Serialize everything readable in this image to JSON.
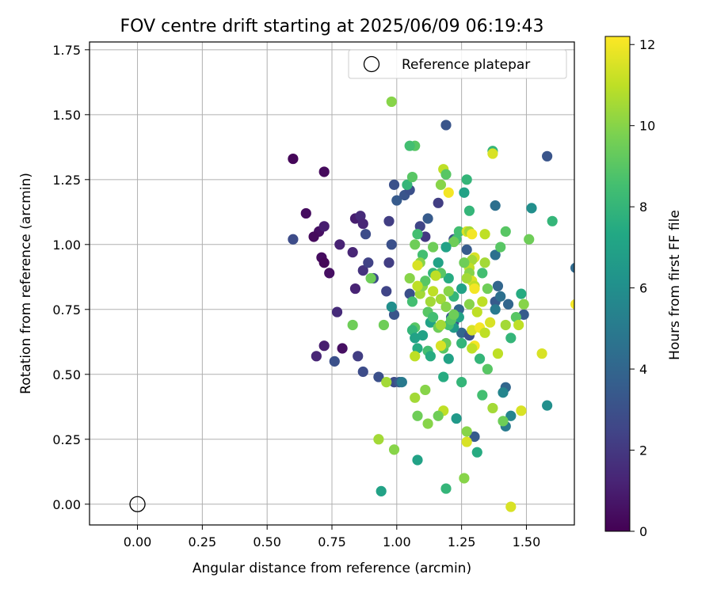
{
  "chart_data": {
    "type": "scatter",
    "title": "FOV centre drift starting at 2025/06/09 06:19:43",
    "xlabel": "Angular distance from reference (arcmin)",
    "ylabel": "Rotation from reference (arcmin)",
    "xlim": [
      -0.185,
      1.685
    ],
    "ylim": [
      -0.08,
      1.78
    ],
    "x_ticks": [
      0.0,
      0.25,
      0.5,
      0.75,
      1.0,
      1.25,
      1.5
    ],
    "x_tick_labels": [
      "0.00",
      "0.25",
      "0.50",
      "0.75",
      "1.00",
      "1.25",
      "1.50"
    ],
    "y_ticks": [
      0.0,
      0.25,
      0.5,
      0.75,
      1.0,
      1.25,
      1.5,
      1.75
    ],
    "y_tick_labels": [
      "0.00",
      "0.25",
      "0.50",
      "0.75",
      "1.00",
      "1.25",
      "1.50",
      "1.75"
    ],
    "grid": true,
    "legend": {
      "position": "top-right",
      "entries": [
        "Reference platepar"
      ]
    },
    "reference_point": {
      "x": 0.0,
      "y": 0.0,
      "label": "Reference platepar"
    },
    "colorbar": {
      "label": "Hours from first FF file",
      "range": [
        0,
        12.2
      ],
      "ticks": [
        0,
        2,
        4,
        6,
        8,
        10,
        12
      ],
      "tick_labels": [
        "0",
        "2",
        "4",
        "6",
        "8",
        "10",
        "12"
      ],
      "colormap": "viridis"
    },
    "points": [
      [
        0.6,
        1.33,
        0.2
      ],
      [
        0.72,
        1.28,
        0.3
      ],
      [
        0.65,
        1.12,
        0.4
      ],
      [
        0.7,
        1.05,
        0.5
      ],
      [
        0.68,
        1.03,
        0.3
      ],
      [
        0.71,
        0.95,
        0.4
      ],
      [
        0.72,
        0.93,
        0.2
      ],
      [
        0.74,
        0.89,
        0.5
      ],
      [
        0.78,
        1.0,
        1.2
      ],
      [
        0.84,
        1.1,
        1.0
      ],
      [
        0.86,
        1.11,
        1.5
      ],
      [
        0.87,
        1.08,
        1.3
      ],
      [
        0.6,
        1.02,
        2.8
      ],
      [
        0.72,
        1.07,
        1.0
      ],
      [
        0.83,
        0.97,
        1.3
      ],
      [
        0.87,
        0.9,
        1.8
      ],
      [
        0.84,
        0.83,
        1.2
      ],
      [
        0.77,
        0.74,
        1.5
      ],
      [
        0.72,
        0.61,
        1.0
      ],
      [
        0.69,
        0.57,
        1.3
      ],
      [
        0.79,
        0.6,
        0.5
      ],
      [
        0.76,
        0.55,
        3.0
      ],
      [
        0.85,
        0.57,
        2.2
      ],
      [
        0.87,
        0.51,
        2.8
      ],
      [
        0.89,
        0.93,
        2.4
      ],
      [
        0.91,
        0.87,
        2.8
      ],
      [
        0.96,
        0.82,
        2.5
      ],
      [
        0.97,
        0.93,
        2.2
      ],
      [
        0.97,
        1.09,
        2.2
      ],
      [
        0.88,
        1.04,
        2.8
      ],
      [
        0.98,
        1.0,
        3.0
      ],
      [
        0.99,
        0.73,
        3.2
      ],
      [
        0.93,
        0.49,
        3.0
      ],
      [
        0.99,
        0.47,
        2.8
      ],
      [
        1.01,
        0.47,
        3.5
      ],
      [
        1.0,
        1.17,
        3.5
      ],
      [
        1.03,
        1.19,
        3.2
      ],
      [
        0.99,
        1.23,
        3.0
      ],
      [
        1.05,
        1.21,
        3.0
      ],
      [
        1.09,
        1.07,
        2.5
      ],
      [
        1.11,
        1.03,
        2.0
      ],
      [
        1.12,
        1.1,
        3.5
      ],
      [
        1.16,
        1.16,
        2.2
      ],
      [
        1.19,
        1.46,
        3.2
      ],
      [
        1.58,
        1.34,
        3.2
      ],
      [
        1.22,
        1.02,
        3.0
      ],
      [
        1.27,
        0.98,
        3.5
      ],
      [
        1.24,
        0.75,
        4.0
      ],
      [
        1.21,
        0.72,
        3.5
      ],
      [
        1.22,
        0.7,
        3.0
      ],
      [
        1.25,
        0.66,
        4.0
      ],
      [
        1.28,
        0.65,
        3.0
      ],
      [
        1.3,
        0.26,
        3.5
      ],
      [
        1.05,
        0.81,
        3.0
      ],
      [
        1.38,
        0.78,
        3.5
      ],
      [
        1.38,
        0.96,
        4.5
      ],
      [
        1.38,
        1.15,
        4.5
      ],
      [
        1.39,
        0.84,
        4.0
      ],
      [
        1.43,
        0.77,
        4.0
      ],
      [
        1.49,
        0.73,
        3.5
      ],
      [
        1.42,
        0.45,
        4.0
      ],
      [
        1.42,
        0.3,
        5.0
      ],
      [
        1.44,
        0.34,
        5.5
      ],
      [
        1.69,
        0.91,
        4.2
      ],
      [
        1.38,
        0.75,
        5.0
      ],
      [
        1.37,
        1.36,
        8.0
      ],
      [
        1.52,
        1.14,
        6.0
      ],
      [
        1.6,
        1.09,
        8.0
      ],
      [
        1.48,
        0.81,
        7.5
      ],
      [
        1.58,
        0.38,
        6.0
      ],
      [
        1.41,
        0.43,
        5.5
      ],
      [
        1.4,
        0.8,
        4.5
      ],
      [
        1.3,
        0.84,
        7.0
      ],
      [
        1.33,
        0.89,
        8.5
      ],
      [
        1.26,
        1.2,
        7.0
      ],
      [
        1.27,
        1.25,
        8.0
      ],
      [
        1.28,
        1.13,
        8.0
      ],
      [
        1.24,
        1.05,
        8.5
      ],
      [
        1.23,
        1.02,
        8.5
      ],
      [
        1.25,
        0.83,
        7.0
      ],
      [
        1.2,
        0.87,
        7.5
      ],
      [
        1.22,
        0.8,
        8.0
      ],
      [
        1.24,
        0.72,
        7.0
      ],
      [
        1.22,
        0.68,
        6.5
      ],
      [
        1.25,
        0.62,
        8.0
      ],
      [
        1.2,
        0.56,
        7.0
      ],
      [
        1.18,
        0.49,
        7.5
      ],
      [
        1.25,
        0.47,
        8.0
      ],
      [
        1.23,
        0.33,
        6.5
      ],
      [
        1.31,
        0.2,
        7.5
      ],
      [
        1.32,
        0.56,
        8.0
      ],
      [
        1.33,
        0.42,
        8.5
      ],
      [
        1.35,
        0.52,
        9.0
      ],
      [
        1.16,
        0.93,
        7.0
      ],
      [
        1.14,
        0.89,
        8.0
      ],
      [
        1.1,
        0.96,
        8.5
      ],
      [
        1.08,
        1.04,
        8.5
      ],
      [
        1.07,
        1.38,
        9.0
      ],
      [
        1.05,
        1.38,
        8.5
      ],
      [
        1.04,
        1.23,
        8.0
      ],
      [
        1.06,
        1.26,
        9.0
      ],
      [
        1.07,
        1.0,
        9.5
      ],
      [
        1.09,
        0.93,
        10.0
      ],
      [
        1.05,
        0.87,
        10.0
      ],
      [
        1.06,
        0.78,
        8.5
      ],
      [
        1.07,
        0.68,
        9.0
      ],
      [
        1.06,
        0.67,
        8.0
      ],
      [
        1.07,
        0.64,
        7.0
      ],
      [
        1.08,
        0.6,
        7.5
      ],
      [
        1.1,
        0.65,
        7.0
      ],
      [
        1.12,
        0.59,
        8.5
      ],
      [
        1.13,
        0.57,
        7.5
      ],
      [
        1.13,
        0.7,
        7.0
      ],
      [
        1.12,
        0.74,
        9.0
      ],
      [
        1.14,
        0.72,
        8.5
      ],
      [
        1.16,
        0.68,
        9.5
      ],
      [
        1.18,
        0.6,
        9.0
      ],
      [
        1.19,
        0.62,
        9.5
      ],
      [
        1.2,
        0.69,
        8.5
      ],
      [
        1.21,
        0.71,
        9.0
      ],
      [
        1.22,
        0.73,
        9.5
      ],
      [
        1.2,
        0.82,
        10.0
      ],
      [
        1.17,
        0.89,
        9.0
      ],
      [
        1.17,
        1.23,
        10.0
      ],
      [
        1.18,
        1.29,
        11.0
      ],
      [
        1.19,
        1.27,
        9.0
      ],
      [
        1.2,
        1.2,
        12.0
      ],
      [
        1.22,
        1.01,
        9.5
      ],
      [
        1.27,
        1.05,
        11.5
      ],
      [
        1.28,
        1.05,
        10.5
      ],
      [
        1.29,
        1.04,
        12.0
      ],
      [
        1.34,
        1.04,
        11.0
      ],
      [
        1.3,
        0.95,
        11.5
      ],
      [
        1.29,
        0.94,
        10.5
      ],
      [
        1.28,
        0.91,
        11.0
      ],
      [
        1.28,
        0.89,
        10.0
      ],
      [
        1.29,
        0.86,
        11.5
      ],
      [
        1.3,
        0.84,
        11.0
      ],
      [
        1.3,
        0.83,
        12.0
      ],
      [
        1.31,
        0.74,
        11.0
      ],
      [
        1.29,
        0.67,
        11.5
      ],
      [
        1.3,
        0.61,
        12.0
      ],
      [
        1.29,
        0.6,
        11.0
      ],
      [
        1.32,
        0.68,
        12.0
      ],
      [
        1.34,
        0.66,
        11.0
      ],
      [
        1.36,
        0.7,
        11.5
      ],
      [
        1.37,
        0.37,
        10.5
      ],
      [
        1.33,
        0.78,
        11.0
      ],
      [
        1.27,
        0.28,
        10.0
      ],
      [
        1.27,
        0.24,
        11.5
      ],
      [
        1.26,
        0.1,
        10.0
      ],
      [
        1.18,
        0.36,
        11.0
      ],
      [
        1.16,
        0.34,
        9.5
      ],
      [
        1.12,
        0.31,
        10.0
      ],
      [
        1.11,
        0.44,
        10.0
      ],
      [
        1.07,
        0.41,
        10.5
      ],
      [
        1.08,
        0.34,
        9.5
      ],
      [
        1.07,
        0.57,
        11.0
      ],
      [
        1.09,
        0.81,
        10.5
      ],
      [
        1.08,
        0.92,
        11.5
      ],
      [
        1.1,
        0.84,
        10.0
      ],
      [
        1.13,
        0.78,
        10.5
      ],
      [
        1.17,
        0.79,
        10.5
      ],
      [
        1.19,
        0.76,
        10.0
      ],
      [
        1.26,
        0.93,
        9.5
      ],
      [
        1.34,
        0.93,
        10.5
      ],
      [
        1.35,
        0.83,
        9.5
      ],
      [
        1.4,
        0.99,
        9.0
      ],
      [
        1.42,
        1.05,
        9.0
      ],
      [
        1.51,
        1.02,
        9.5
      ],
      [
        1.49,
        0.77,
        10.0
      ],
      [
        1.46,
        0.72,
        9.0
      ],
      [
        1.44,
        0.64,
        8.0
      ],
      [
        1.42,
        0.69,
        10.5
      ],
      [
        1.47,
        0.69,
        11.0
      ],
      [
        1.48,
        0.36,
        11.5
      ],
      [
        1.44,
        -0.01,
        11.5
      ],
      [
        1.56,
        0.58,
        11.5
      ],
      [
        1.69,
        0.77,
        12.0
      ],
      [
        1.37,
        1.35,
        11.5
      ],
      [
        1.39,
        0.58,
        11.0
      ],
      [
        1.41,
        0.32,
        9.5
      ],
      [
        0.98,
        1.55,
        10.0
      ],
      [
        0.99,
        0.21,
        10.0
      ],
      [
        0.94,
        0.05,
        7.0
      ],
      [
        0.93,
        0.25,
        10.5
      ],
      [
        0.96,
        0.47,
        10.5
      ],
      [
        0.95,
        0.69,
        9.5
      ],
      [
        0.83,
        0.69,
        9.5
      ],
      [
        0.9,
        0.87,
        9.5
      ],
      [
        1.08,
        0.17,
        7.0
      ],
      [
        1.19,
        0.06,
        8.0
      ],
      [
        1.17,
        0.61,
        11.5
      ],
      [
        1.14,
        0.82,
        11.0
      ],
      [
        1.15,
        0.88,
        11.0
      ],
      [
        1.11,
        0.86,
        9.0
      ],
      [
        1.08,
        0.84,
        11.0
      ],
      [
        1.17,
        0.69,
        10.5
      ],
      [
        1.28,
        0.77,
        10.0
      ],
      [
        1.27,
        0.87,
        10.5
      ],
      [
        1.02,
        0.47,
        5.0
      ],
      [
        0.98,
        0.76,
        6.0
      ],
      [
        1.14,
        0.99,
        9.5
      ],
      [
        1.19,
        0.99,
        7.0
      ]
    ]
  }
}
